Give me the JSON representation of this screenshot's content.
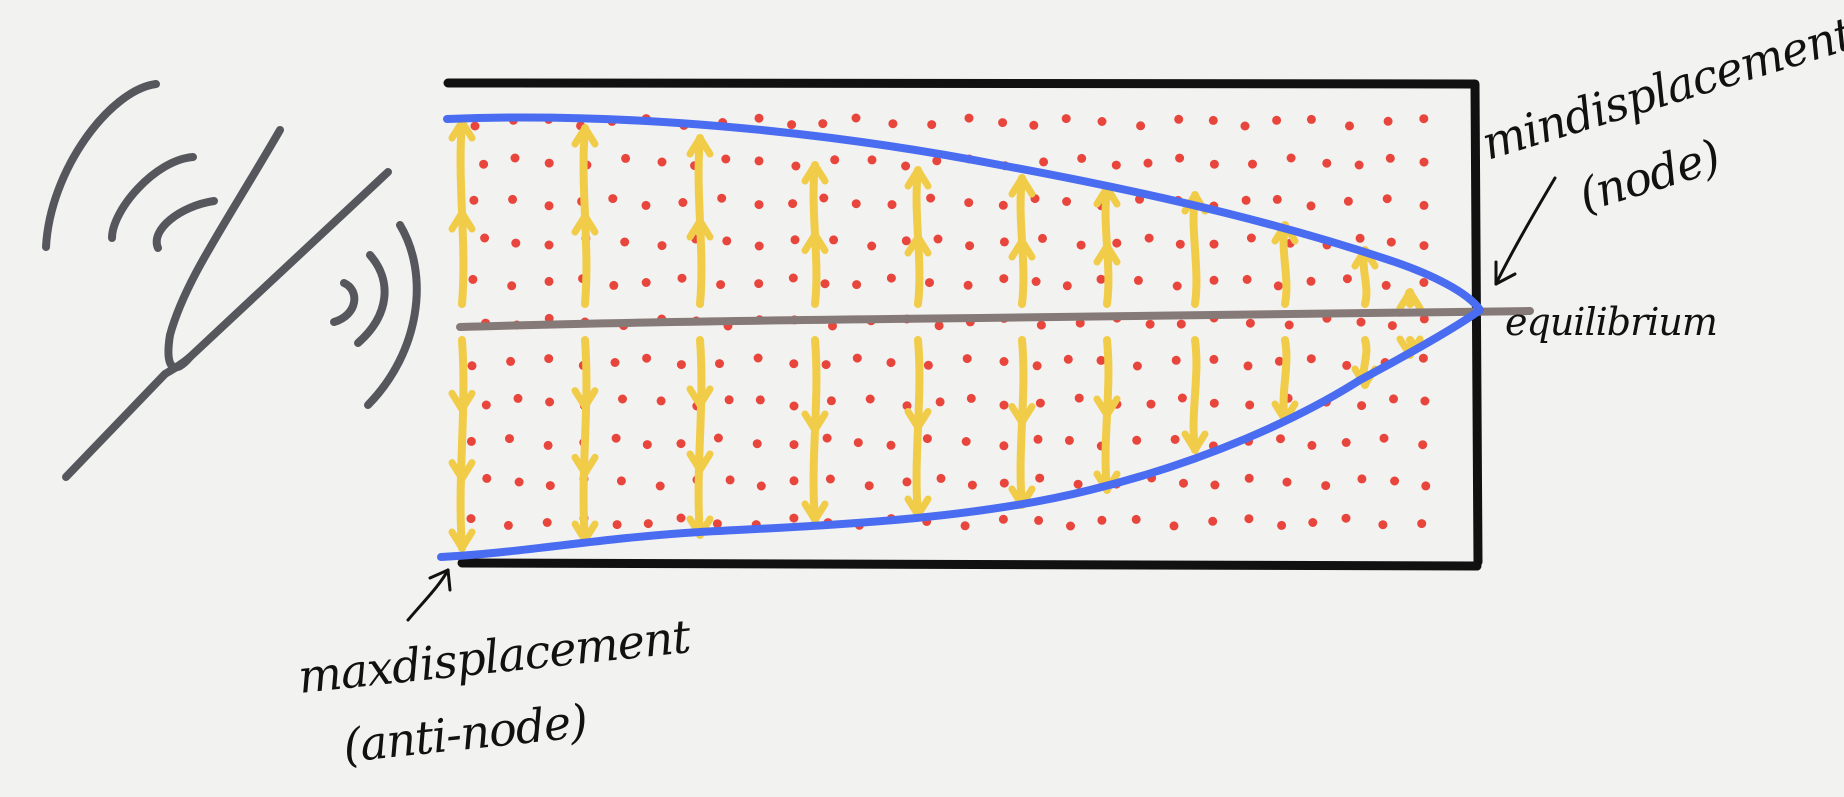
{
  "labels": {
    "min_displacement": "mindisplacement",
    "node": "(node)",
    "equilibrium": "equilibrium",
    "max_displacement": "maxdisplacement",
    "anti_node": "(anti-node)"
  },
  "colors": {
    "background": "#f2f2f1",
    "tube_outline": "#111111",
    "envelope": "#4a6cf0",
    "equilibrium_line": "#857a78",
    "particles": "#e8463c",
    "arrows": "#f1cc48",
    "tuning_fork": "#55575c",
    "annotation_text": "#111111"
  },
  "icons": {
    "tuning_fork": "tuning-fork-icon",
    "sound_waves": "sound-wave-icon"
  }
}
